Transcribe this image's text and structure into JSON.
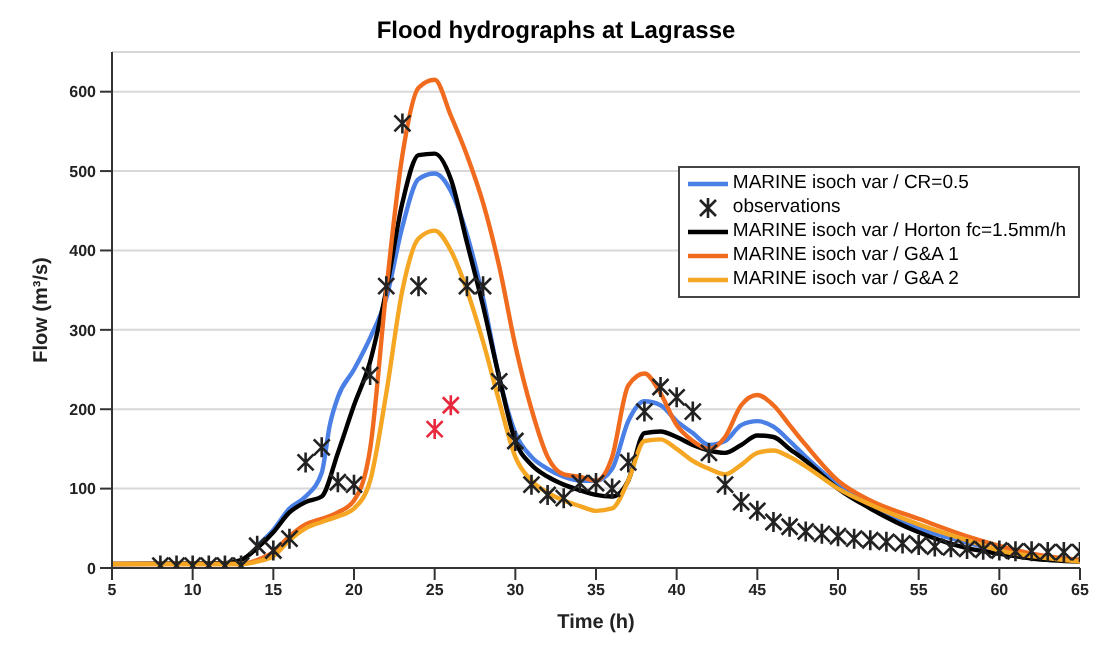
{
  "chart_data": {
    "type": "line",
    "title": "Flood hydrographs at Lagrasse",
    "xlabel": "Time (h)",
    "ylabel": "Flow (m³/s)",
    "xlim": [
      5,
      65
    ],
    "xticks": [
      5,
      10,
      15,
      20,
      25,
      30,
      35,
      40,
      45,
      50,
      55,
      60,
      65
    ],
    "ylim": [
      0,
      650
    ],
    "yticks": [
      0,
      100,
      200,
      300,
      400,
      500,
      600
    ],
    "grid": "y",
    "legend": "top right",
    "line_style": "solid",
    "marker": "none",
    "series": [
      {
        "name": "MARINE isoch var / CR=0.5",
        "color": "#4a7fe6",
        "x": [
          14,
          15,
          16,
          17,
          18,
          18.5,
          19,
          20,
          21,
          22,
          23,
          24,
          25,
          26,
          27,
          28,
          29,
          30,
          31,
          32,
          33,
          34,
          35,
          36,
          37,
          38,
          39,
          40,
          41,
          42,
          43,
          44,
          45,
          46,
          47,
          48,
          50,
          52,
          55,
          58,
          60,
          62,
          65
        ],
        "values": [
          28,
          48,
          75,
          90,
          120,
          180,
          215,
          250,
          290,
          340,
          430,
          490,
          497,
          475,
          420,
          340,
          240,
          170,
          140,
          125,
          115,
          110,
          110,
          125,
          185,
          210,
          205,
          185,
          170,
          155,
          160,
          180,
          185,
          178,
          160,
          140,
          105,
          80,
          50,
          32,
          22,
          15,
          10
        ]
      },
      {
        "name": "observations",
        "type": "scatter",
        "marker": "cross",
        "color": "#222222",
        "x": [
          8,
          9,
          10,
          11,
          12,
          13,
          14,
          15,
          16,
          17,
          18,
          19,
          20,
          21,
          22,
          23,
          24,
          27,
          28,
          29,
          30,
          31,
          32,
          33,
          34,
          35,
          36,
          37,
          38,
          39,
          40,
          41,
          42,
          43,
          44,
          45,
          46,
          47,
          48,
          49,
          50,
          51,
          52,
          53,
          54,
          55,
          56,
          57,
          58,
          59,
          60,
          61,
          62,
          63,
          64,
          65
        ],
        "values": [
          3,
          3,
          3,
          3,
          3,
          3,
          28,
          22,
          37,
          133,
          152,
          108,
          105,
          243,
          355,
          560,
          355,
          355,
          355,
          235,
          160,
          105,
          92,
          88,
          107,
          107,
          100,
          133,
          197,
          228,
          215,
          197,
          145,
          105,
          83,
          72,
          58,
          52,
          46,
          43,
          40,
          37,
          35,
          33,
          31,
          29,
          27,
          26,
          24,
          23,
          22,
          21,
          21,
          20,
          20,
          20
        ]
      },
      {
        "name": "MARINE isoch var / Horton fc=1.5mm/h",
        "color": "#000000",
        "x": [
          5,
          12,
          13,
          14,
          15,
          16,
          17,
          18,
          19,
          20,
          21,
          22,
          23,
          24,
          25,
          26,
          27,
          28,
          29,
          30,
          31,
          32,
          33,
          34,
          35,
          36,
          37,
          38,
          39,
          40,
          41,
          42,
          43,
          44,
          45,
          46,
          47,
          48,
          50,
          52,
          55,
          58,
          60,
          62,
          65
        ],
        "values": [
          5,
          6,
          10,
          25,
          45,
          70,
          83,
          90,
          145,
          205,
          260,
          350,
          460,
          520,
          522,
          490,
          410,
          330,
          240,
          160,
          130,
          115,
          105,
          98,
          92,
          90,
          110,
          170,
          172,
          165,
          155,
          148,
          145,
          155,
          167,
          165,
          150,
          135,
          100,
          75,
          45,
          25,
          18,
          12,
          8
        ]
      },
      {
        "name": "MARINE isoch var / G&A  1",
        "color": "#f06b1e",
        "x": [
          5,
          13,
          14,
          15,
          16,
          17,
          18,
          19,
          20,
          21,
          22,
          23,
          24,
          25,
          26,
          27,
          28,
          29,
          30,
          31,
          32,
          33,
          34,
          35,
          36,
          37,
          38,
          39,
          40,
          41,
          42,
          43,
          44,
          45,
          46,
          47,
          48,
          50,
          52,
          55,
          58,
          60,
          62,
          65
        ],
        "values": [
          5,
          5,
          10,
          20,
          40,
          55,
          62,
          70,
          85,
          150,
          350,
          520,
          605,
          615,
          570,
          520,
          460,
          380,
          280,
          200,
          140,
          118,
          115,
          110,
          140,
          230,
          245,
          220,
          180,
          160,
          150,
          165,
          205,
          218,
          205,
          180,
          155,
          110,
          85,
          62,
          40,
          28,
          18,
          10
        ]
      },
      {
        "name": "MARINE isoch var / G&A 2",
        "color": "#f5a623",
        "x": [
          5,
          13,
          14,
          15,
          16,
          17,
          18,
          19,
          20,
          21,
          22,
          23,
          24,
          25,
          26,
          27,
          28,
          29,
          30,
          31,
          32,
          33,
          34,
          35,
          36,
          37,
          38,
          39,
          40,
          41,
          42,
          43,
          44,
          45,
          46,
          47,
          48,
          50,
          52,
          55,
          58,
          60,
          62,
          65
        ],
        "values": [
          5,
          5,
          8,
          15,
          35,
          50,
          58,
          65,
          75,
          110,
          220,
          350,
          415,
          425,
          400,
          350,
          285,
          210,
          140,
          110,
          95,
          85,
          78,
          72,
          75,
          110,
          160,
          162,
          150,
          135,
          125,
          118,
          130,
          145,
          148,
          140,
          128,
          100,
          80,
          55,
          35,
          22,
          15,
          8
        ]
      },
      {
        "type": "scatter",
        "marker": "cross",
        "color": "#e8283c",
        "x": [
          25,
          26
        ],
        "values": [
          175,
          205
        ]
      }
    ]
  }
}
